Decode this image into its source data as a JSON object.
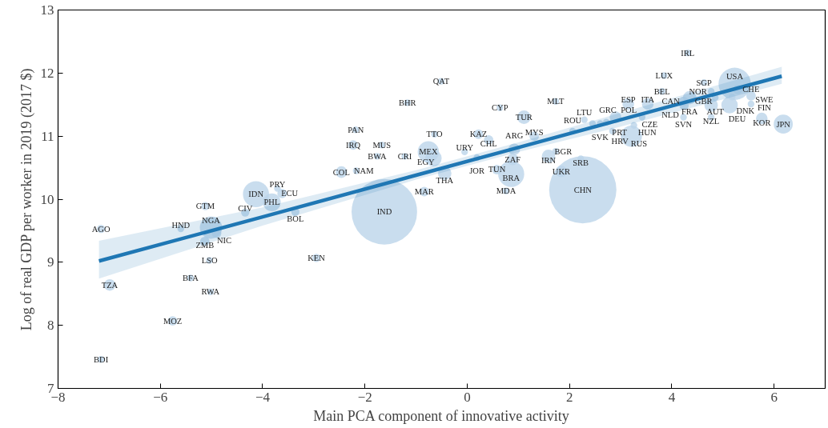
{
  "chart_data": {
    "type": "bubble",
    "xlabel": "Main PCA component of innovative activity",
    "ylabel": "Log of real GDP per worker in 2019 (2017 $)",
    "xlim": [
      -8,
      7
    ],
    "ylim": [
      7,
      13
    ],
    "xticks": [
      {
        "value": -8,
        "label": "−8"
      },
      {
        "value": -6,
        "label": "−6"
      },
      {
        "value": -4,
        "label": "−4"
      },
      {
        "value": -2,
        "label": "−2"
      },
      0,
      2,
      4,
      6
    ],
    "yticks": [
      7,
      8,
      9,
      10,
      11,
      12,
      13
    ],
    "grid": false,
    "series": [
      {
        "type": "bubble",
        "color": "#bcd5ea",
        "x": [
          -7.16,
          -6.99,
          -7.16,
          -5.76,
          -5.41,
          -5.02,
          -5.04,
          -5.13,
          -5.6,
          -5.01,
          -4.9,
          -5.12,
          -4.34,
          -4.13,
          -3.62,
          -3.71,
          -3.82,
          -3.36,
          -2.95,
          -0.51,
          -1.17,
          -2.18,
          -2.23,
          -1.67,
          -1.76,
          -1.22,
          -2.46,
          -2.17,
          -0.64,
          -0.76,
          -0.66,
          -0.05,
          0.19,
          0.22,
          0.42,
          -0.44,
          -0.84,
          -1.62,
          1.11,
          0.64,
          1.31,
          0.92,
          0.89,
          0.58,
          0.86,
          0.76,
          1.73,
          1.59,
          1.73,
          2.22,
          1.84,
          2.26,
          2.06,
          2.29,
          2.45,
          2.6,
          2.72,
          2.9,
          3.42,
          3.26,
          2.84,
          3.21,
          3.15,
          3.53,
          4.31,
          3.85,
          3.81,
          4.63,
          5.23,
          4.77,
          5.29,
          4.35,
          4.85,
          5.18,
          5.55,
          4.23,
          4.24,
          4.77,
          5.13,
          5.55,
          4.23,
          4.77,
          5.76,
          6.18
        ],
        "values": [
          9.53,
          8.64,
          7.46,
          8.07,
          8.75,
          8.53,
          9.03,
          9.33,
          9.53,
          9.55,
          9.46,
          9.89,
          9.79,
          10.08,
          10.09,
          10.17,
          9.95,
          9.8,
          9.07,
          11.87,
          11.53,
          11.1,
          10.86,
          10.86,
          10.68,
          10.68,
          10.43,
          10.45,
          11.03,
          10.75,
          10.65,
          10.75,
          10.66,
          11.03,
          10.94,
          10.41,
          10.12,
          9.8,
          11.3,
          11.45,
          11.0,
          10.79,
          10.63,
          10.47,
          10.4,
          10.13,
          11.55,
          10.68,
          10.76,
          10.64,
          10.44,
          10.15,
          11.08,
          11.26,
          11.2,
          11.2,
          11.22,
          11.3,
          11.3,
          11.17,
          11.08,
          11.0,
          11.51,
          11.51,
          12.32,
          11.96,
          11.71,
          11.85,
          11.83,
          11.71,
          11.74,
          11.61,
          11.61,
          11.62,
          11.64,
          11.55,
          11.49,
          11.49,
          11.49,
          11.51,
          11.3,
          11.3,
          11.28,
          11.19
        ],
        "sizes": [
          0.015,
          0.03,
          0.01,
          0.02,
          0.01,
          0.01,
          0.01,
          0.02,
          0.01,
          0.11,
          0.02,
          0.015,
          0.015,
          0.15,
          0.02,
          0.01,
          0.07,
          0.015,
          0.015,
          0.01,
          0.01,
          0.01,
          0.02,
          0.01,
          0.01,
          0.01,
          0.03,
          0.01,
          0.01,
          0.1,
          0.06,
          0.01,
          0.01,
          0.02,
          0.02,
          0.04,
          0.02,
          0.95,
          0.04,
          0.01,
          0.02,
          0.03,
          0.03,
          0.02,
          0.15,
          0.01,
          0.01,
          0.04,
          0.01,
          0.01,
          0.03,
          1.0,
          0.01,
          0.01,
          0.01,
          0.01,
          0.01,
          0.03,
          0.01,
          0.01,
          0.01,
          0.1,
          0.03,
          0.03,
          0.01,
          0.01,
          0.01,
          0.01,
          0.23,
          0.01,
          0.02,
          0.04,
          0.01,
          0.01,
          0.02,
          0.02,
          0.02,
          0.04,
          0.06,
          0.01,
          0.01,
          0.01,
          0.03,
          0.08
        ],
        "value_labels": [
          "AGO",
          "TZA",
          "BDI",
          "MOZ",
          "BFA",
          "RWA",
          "LSO",
          "ZMB",
          "HND",
          "NGA",
          "NIC",
          "GTM",
          "CIV",
          "IDN",
          "ECU",
          "PRY",
          "PHL",
          "BOL",
          "KEN",
          "QAT",
          "BHR",
          "PAN",
          "IRQ",
          "MUS",
          "BWA",
          "CRI",
          "COL",
          "NAM",
          "TTO",
          "MEX",
          "EGY",
          "URY",
          "JOR",
          "KAZ",
          "CHL",
          "THA",
          "MAR",
          "IND",
          "TUR",
          "CYP",
          "MYS",
          "ARG",
          "ZAF",
          "TUN",
          "BRA",
          "MDA",
          "MLT",
          "IRN",
          "BGR",
          "SRB",
          "UKR",
          "CHN",
          "ROU",
          "LTU",
          "SVK",
          "GRC",
          "PRT",
          "POL",
          "CZE",
          "HUN",
          "HRV",
          "RUS",
          "ESP",
          "ITA",
          "IRL",
          "LUX",
          "BEL",
          "SGP",
          "USA",
          "NOR",
          "CHE",
          "FRA",
          "AUT",
          "DNK",
          "SWE",
          "NLD",
          "CAN",
          "GBR",
          "DEU",
          "FIN",
          "SVN",
          "NZL",
          "KOR",
          "JPN"
        ]
      },
      {
        "type": "line",
        "color": "#1f77b4",
        "x": [
          -7.2,
          -4,
          -1,
          1,
          3,
          6.15
        ],
        "values": [
          9.02,
          9.72,
          10.38,
          10.82,
          11.26,
          11.95
        ],
        "lower": [
          8.74,
          9.58,
          10.31,
          10.75,
          11.15,
          11.83
        ],
        "upper": [
          9.34,
          9.87,
          10.46,
          10.9,
          11.37,
          12.1
        ]
      }
    ]
  }
}
